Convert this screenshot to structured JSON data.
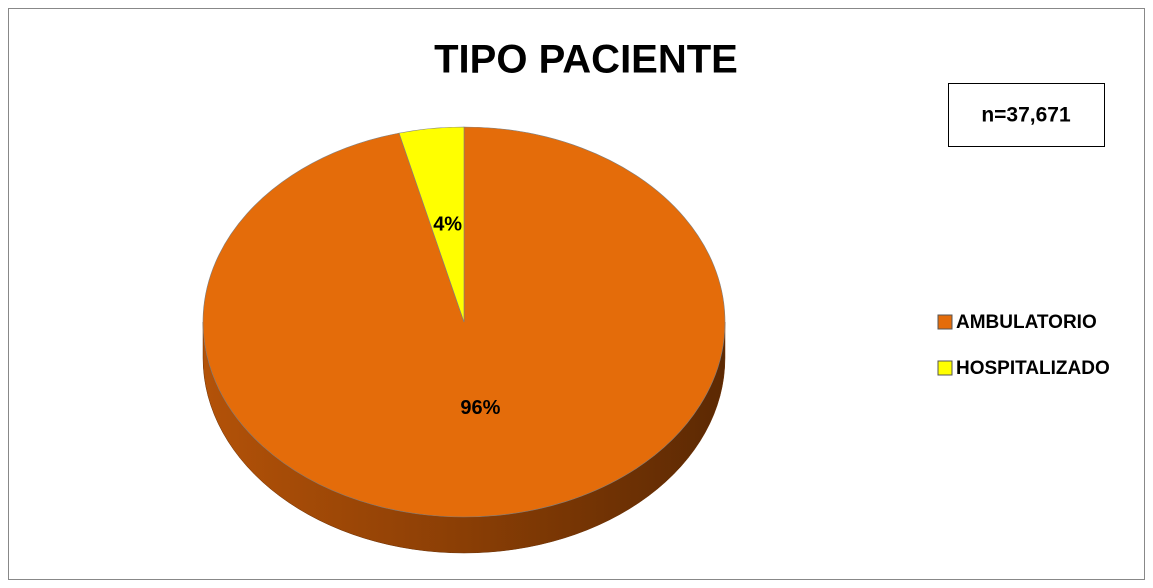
{
  "chart_data": {
    "type": "pie",
    "title": "TIPO PACIENTE",
    "annotation": "n=37,671",
    "categories": [
      "AMBULATORIO",
      "HOSPITALIZADO"
    ],
    "values": [
      96,
      4
    ],
    "value_labels": [
      "96%",
      "4%"
    ],
    "colors": [
      "#e46c0a",
      "#ffff00"
    ],
    "legend": "right"
  }
}
